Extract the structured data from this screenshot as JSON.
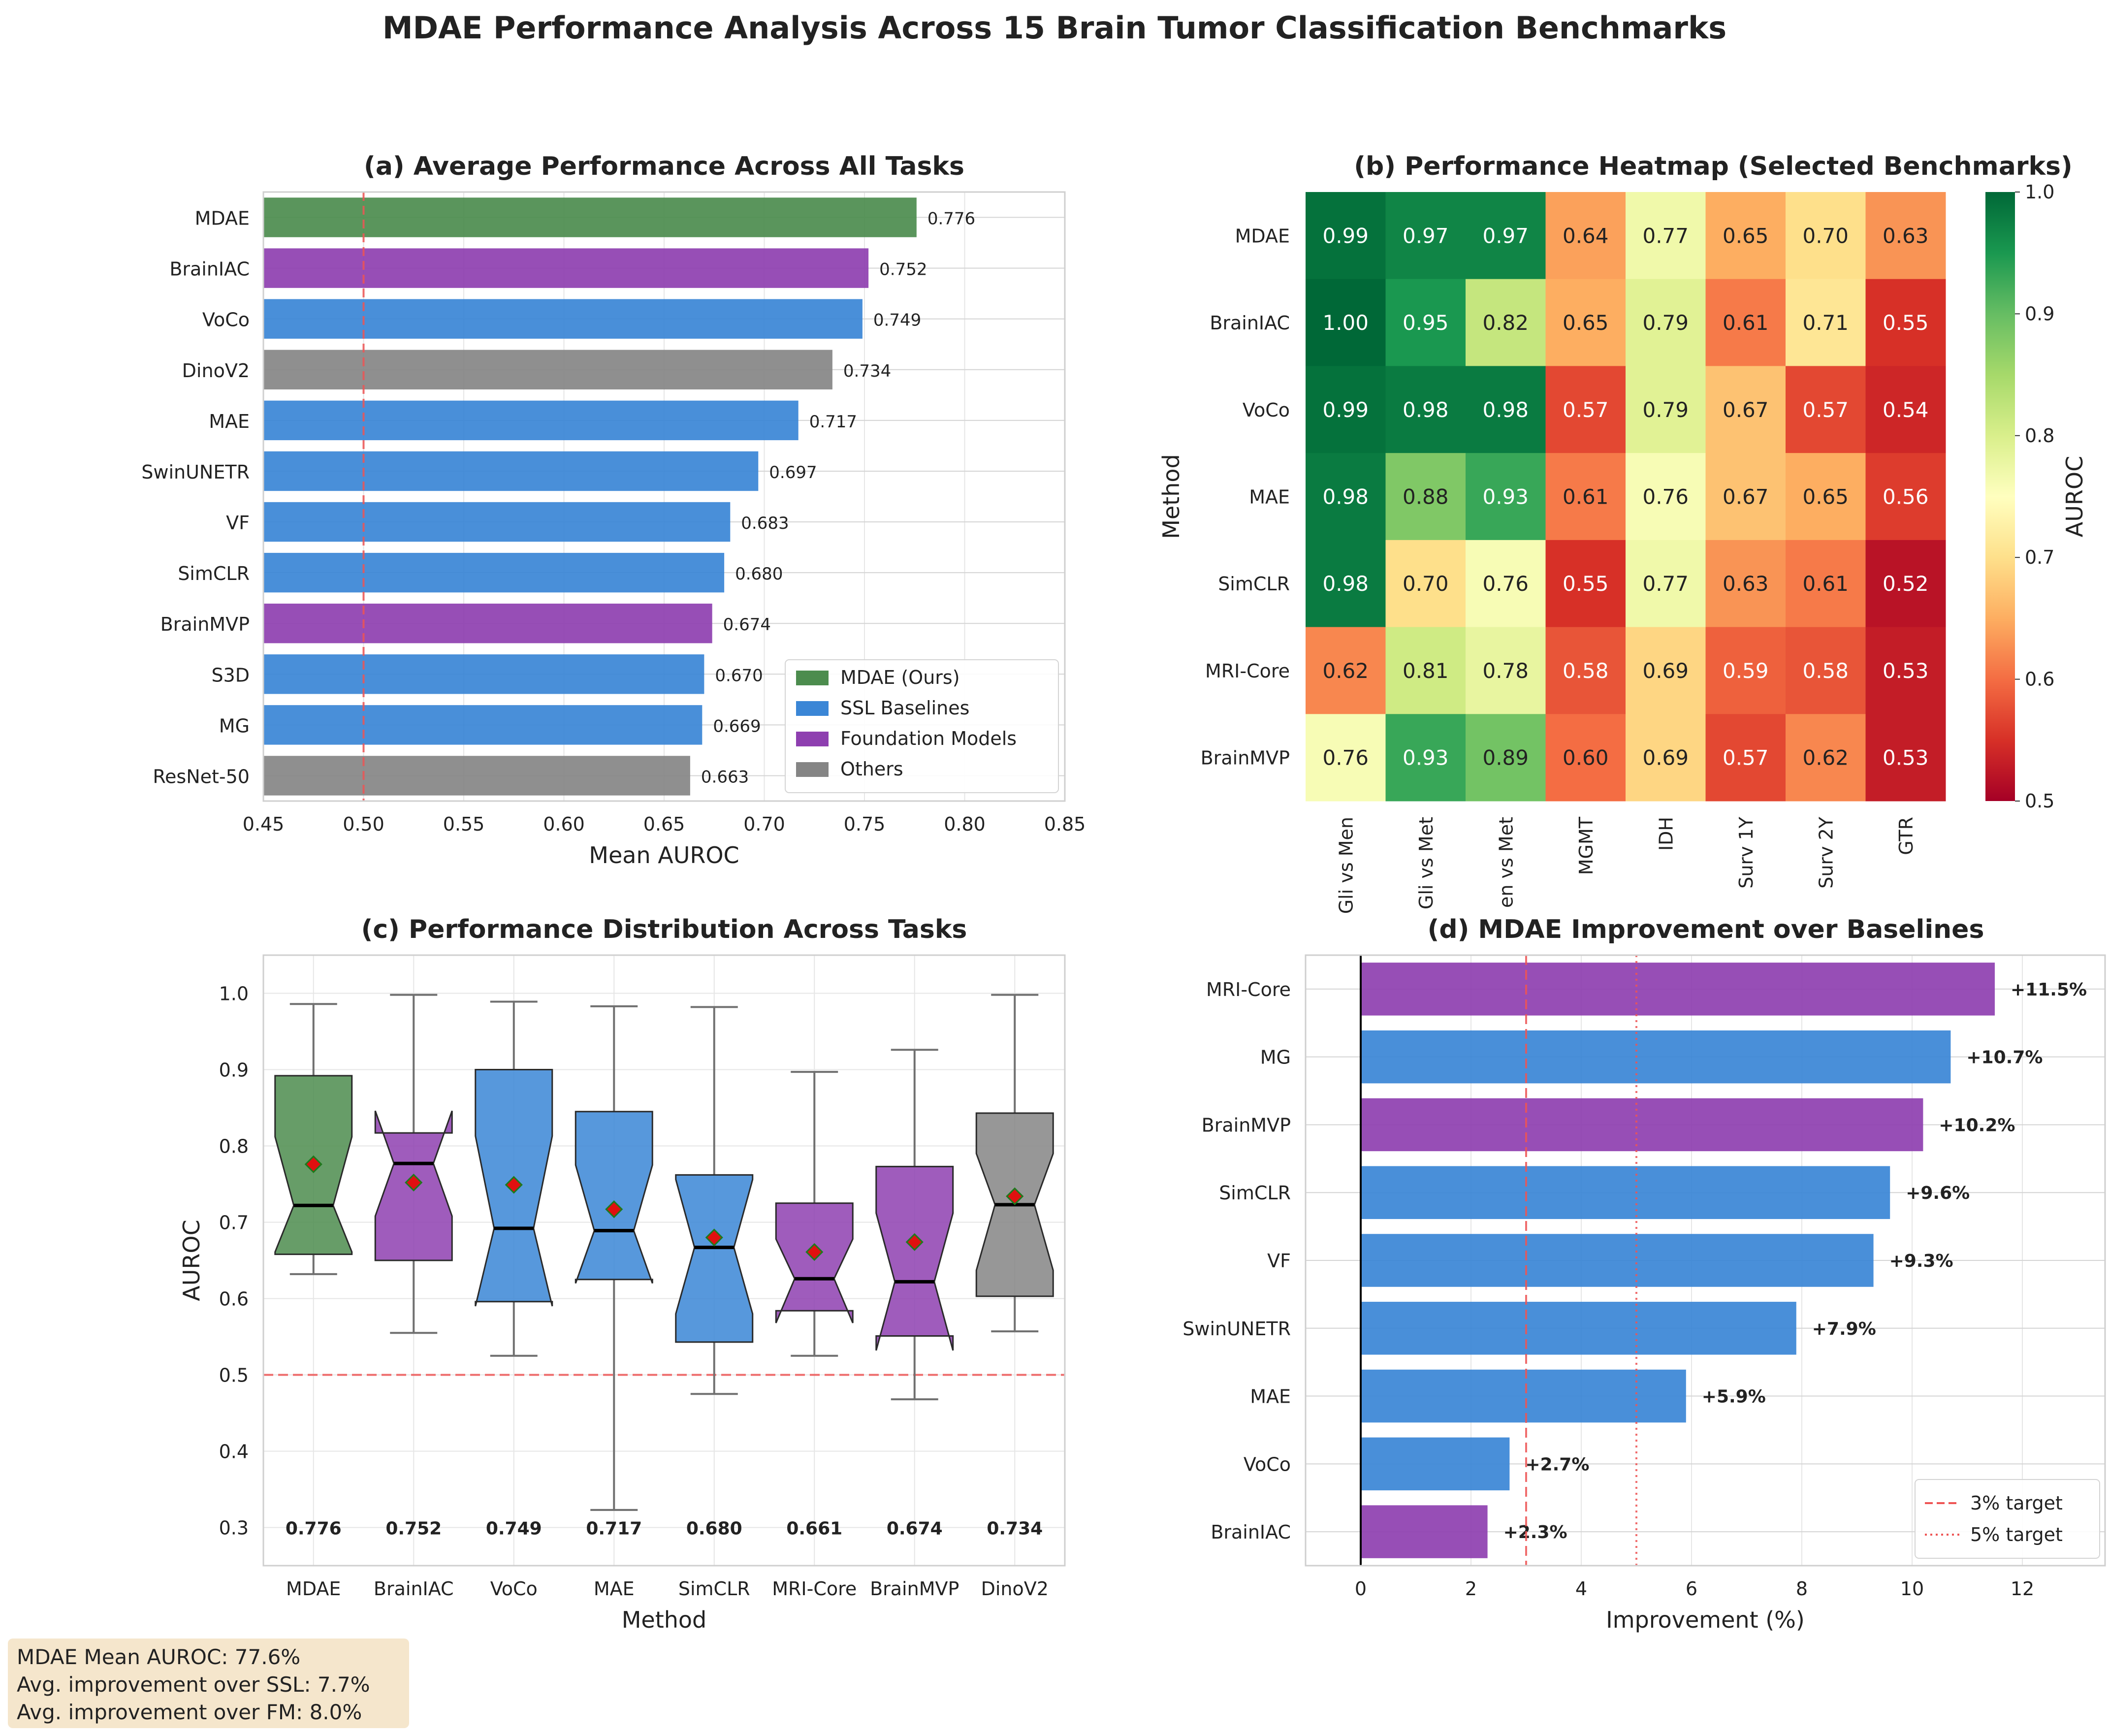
{
  "figure": {
    "title": "MDAE Performance Analysis Across 15 Brain Tumor Classification Benchmarks"
  },
  "colors": {
    "mdae": "#4c8c4e",
    "ssl": "#3a86d6",
    "fm": "#8e3fb0",
    "other": "#858585",
    "reference_line": "#ee5555",
    "mean_marker": "#e01010",
    "grid": "#e6e6e6"
  },
  "panel_a": {
    "title": "(a) Average Performance Across All Tasks",
    "xlabel": "Mean AUROC",
    "legend": [
      "MDAE (Ours)",
      "SSL Baselines",
      "Foundation Models",
      "Others"
    ],
    "chart_data": {
      "type": "bar",
      "orientation": "horizontal",
      "categories": [
        "MDAE",
        "BrainIAC",
        "VoCo",
        "DinoV2",
        "MAE",
        "SwinUNETR",
        "VF",
        "SimCLR",
        "BrainMVP",
        "S3D",
        "MG",
        "ResNet-50"
      ],
      "values": [
        0.776,
        0.752,
        0.749,
        0.734,
        0.717,
        0.697,
        0.683,
        0.68,
        0.674,
        0.67,
        0.669,
        0.663
      ],
      "value_labels": [
        "0.776",
        "0.752",
        "0.749",
        "0.734",
        "0.717",
        "0.697",
        "0.683",
        "0.680",
        "0.674",
        "0.670",
        "0.669",
        "0.663"
      ],
      "groups": [
        "mdae",
        "fm",
        "ssl",
        "other",
        "ssl",
        "ssl",
        "ssl",
        "ssl",
        "fm",
        "ssl",
        "ssl",
        "other"
      ],
      "xlim": [
        0.45,
        0.85
      ],
      "xticks": [
        "0.45",
        "0.50",
        "0.55",
        "0.60",
        "0.65",
        "0.70",
        "0.75",
        "0.80",
        "0.85"
      ],
      "reference_line": 0.5,
      "legend_position": "lower right",
      "grid": true
    }
  },
  "panel_b": {
    "title": "(b) Performance Heatmap (Selected Benchmarks)",
    "ylabel": "Method",
    "colorbar_label": "AUROC",
    "chart_data": {
      "type": "heatmap",
      "rows": [
        "MDAE",
        "BrainIAC",
        "VoCo",
        "MAE",
        "SimCLR",
        "MRI-Core",
        "BrainMVP"
      ],
      "columns": [
        "Gli vs Men",
        "Gli vs Met",
        "Men vs Met",
        "MGMT",
        "IDH",
        "Surv 1Y",
        "Surv 2Y",
        "GTR"
      ],
      "column_labels_shown": [
        "Gli vs Men",
        "Gli vs Met",
        "en vs Met",
        "MGMT",
        "IDH",
        "Surv 1Y",
        "Surv 2Y",
        "GTR"
      ],
      "values": [
        [
          0.99,
          0.97,
          0.97,
          0.64,
          0.77,
          0.65,
          0.7,
          0.63
        ],
        [
          1.0,
          0.95,
          0.82,
          0.65,
          0.79,
          0.61,
          0.71,
          0.55
        ],
        [
          0.99,
          0.98,
          0.98,
          0.57,
          0.79,
          0.67,
          0.57,
          0.54
        ],
        [
          0.98,
          0.88,
          0.93,
          0.61,
          0.76,
          0.67,
          0.65,
          0.56
        ],
        [
          0.98,
          0.7,
          0.76,
          0.55,
          0.77,
          0.63,
          0.61,
          0.52
        ],
        [
          0.62,
          0.81,
          0.78,
          0.58,
          0.69,
          0.59,
          0.58,
          0.53
        ],
        [
          0.76,
          0.93,
          0.89,
          0.6,
          0.69,
          0.57,
          0.62,
          0.53
        ]
      ],
      "vmin": 0.5,
      "vmax": 1.0,
      "colorbar_ticks": [
        "0.5",
        "0.6",
        "0.7",
        "0.8",
        "0.9",
        "1.0"
      ],
      "colormap": "RdYlGn"
    }
  },
  "panel_c": {
    "title": "(c) Performance Distribution Across Tasks",
    "xlabel": "Method",
    "ylabel": "AUROC",
    "chart_data": {
      "type": "box",
      "notched": true,
      "categories": [
        "MDAE",
        "BrainIAC",
        "VoCo",
        "MAE",
        "SimCLR",
        "MRI-Core",
        "BrainMVP",
        "DinoV2"
      ],
      "groups": [
        "mdae",
        "fm",
        "ssl",
        "ssl",
        "ssl",
        "fm",
        "fm",
        "other"
      ],
      "whisker_low": [
        0.632,
        0.555,
        0.525,
        0.323,
        0.475,
        0.525,
        0.468,
        0.557
      ],
      "q1": [
        0.658,
        0.65,
        0.596,
        0.625,
        0.543,
        0.584,
        0.551,
        0.603
      ],
      "median": [
        0.722,
        0.777,
        0.692,
        0.689,
        0.667,
        0.626,
        0.622,
        0.723
      ],
      "q3": [
        0.892,
        0.817,
        0.9,
        0.845,
        0.762,
        0.725,
        0.773,
        0.843
      ],
      "whisker_high": [
        0.986,
        0.998,
        0.989,
        0.983,
        0.982,
        0.897,
        0.926,
        0.998
      ],
      "notch_low": [
        0.661,
        0.708,
        0.59,
        0.62,
        0.58,
        0.568,
        0.532,
        0.637
      ],
      "notch_high": [
        0.812,
        0.846,
        0.813,
        0.775,
        0.756,
        0.678,
        0.712,
        0.79
      ],
      "mean": [
        0.776,
        0.752,
        0.749,
        0.717,
        0.68,
        0.661,
        0.674,
        0.734
      ],
      "mean_labels": [
        "0.776",
        "0.752",
        "0.749",
        "0.717",
        "0.680",
        "0.661",
        "0.674",
        "0.734"
      ],
      "ylim": [
        0.25,
        1.05
      ],
      "yticks": [
        "0.3",
        "0.4",
        "0.5",
        "0.6",
        "0.7",
        "0.8",
        "0.9",
        "1.0"
      ],
      "reference_line": 0.5,
      "grid": true
    }
  },
  "panel_d": {
    "title": "(d) MDAE Improvement over Baselines",
    "xlabel": "Improvement (%)",
    "legend": [
      "3% target",
      "5% target"
    ],
    "chart_data": {
      "type": "bar",
      "orientation": "horizontal",
      "categories": [
        "MRI-Core",
        "MG",
        "BrainMVP",
        "SimCLR",
        "VF",
        "SwinUNETR",
        "MAE",
        "VoCo",
        "BrainIAC"
      ],
      "values": [
        11.5,
        10.7,
        10.2,
        9.6,
        9.3,
        7.9,
        5.9,
        2.7,
        2.3
      ],
      "value_labels": [
        "+11.5%",
        "+10.7%",
        "+10.2%",
        "+9.6%",
        "+9.3%",
        "+7.9%",
        "+5.9%",
        "+2.7%",
        "+2.3%"
      ],
      "groups": [
        "fm",
        "ssl",
        "fm",
        "ssl",
        "ssl",
        "ssl",
        "ssl",
        "ssl",
        "fm"
      ],
      "xlim": [
        -1,
        13.5
      ],
      "xticks": [
        "0",
        "2",
        "4",
        "6",
        "8",
        "10",
        "12"
      ],
      "target_lines": [
        3,
        5
      ],
      "legend_position": "lower right",
      "grid": true
    }
  },
  "summary": {
    "line1": "MDAE Mean AUROC: 77.6%",
    "line2": "Avg. improvement over SSL: 7.7%",
    "line3": "Avg. improvement over FM: 8.0%"
  }
}
